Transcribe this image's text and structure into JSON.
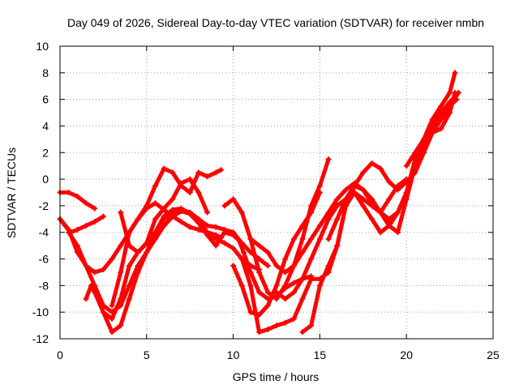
{
  "chart_data": {
    "type": "line",
    "title": "Day 049 of 2026, Sidereal Day-to-day VTEC variation (SDTVAR) for receiver nmbn",
    "xlabel": "GPS time / hours",
    "ylabel": "SDTVAR / TECUs",
    "xlim": [
      0,
      25
    ],
    "ylim": [
      -12,
      10
    ],
    "xticks": [
      0,
      5,
      10,
      15,
      20,
      25
    ],
    "yticks": [
      -12,
      -10,
      -8,
      -6,
      -4,
      -2,
      0,
      2,
      4,
      6,
      8,
      10
    ],
    "grid": true,
    "marker": "plus",
    "color": "#ff0000",
    "series": [
      {
        "x": [
          0.0,
          0.5,
          1.0,
          1.5,
          2.0
        ],
        "y": [
          -1.0,
          -1.0,
          -1.3,
          -1.8,
          -2.2
        ]
      },
      {
        "x": [
          0.0,
          0.5,
          1.0,
          1.5,
          2.0,
          2.5,
          3.0,
          3.5,
          4.0,
          4.5,
          5.0,
          5.5,
          6.0,
          6.5,
          7.0,
          7.5,
          8.0,
          8.5,
          9.0,
          9.3
        ],
        "y": [
          -3.0,
          -3.8,
          -5.5,
          -6.5,
          -7.0,
          -6.8,
          -6.0,
          -5.0,
          -4.0,
          -3.0,
          -2.2,
          -1.8,
          -2.3,
          -2.8,
          -3.2,
          -3.6,
          -3.8,
          -4.0,
          -4.2,
          -4.4
        ]
      },
      {
        "x": [
          0.5,
          1.0,
          1.5,
          2.0,
          2.5,
          3.0,
          3.5,
          4.0,
          4.5,
          5.0,
          5.5,
          6.0,
          6.5,
          7.0,
          7.5,
          8.0,
          8.5,
          9.0,
          9.5,
          10.0,
          10.5,
          11.0,
          11.5
        ],
        "y": [
          -4.0,
          -5.0,
          -6.5,
          -8.0,
          -9.5,
          -10.0,
          -9.5,
          -8.0,
          -6.5,
          -5.5,
          -4.5,
          -3.5,
          -2.8,
          -2.4,
          -2.6,
          -3.2,
          -4.0,
          -4.5,
          -4.8,
          -5.2,
          -6.0,
          -6.5,
          -6.8
        ]
      },
      {
        "x": [
          1.5,
          1.8,
          2.0,
          2.5,
          3.0,
          3.5,
          4.0,
          4.5,
          5.0,
          5.5,
          6.0,
          6.5,
          7.0,
          7.5,
          8.0,
          8.5,
          9.0,
          9.5,
          10.0,
          10.3,
          10.6,
          11.0,
          11.5,
          12.0,
          12.5,
          13.0,
          13.5,
          14.0,
          14.5
        ],
        "y": [
          -9.0,
          -8.0,
          -8.5,
          -10.0,
          -10.5,
          -9.0,
          -6.5,
          -5.5,
          -4.8,
          -4.0,
          -3.0,
          -2.5,
          -2.3,
          -2.5,
          -3.0,
          -3.5,
          -3.6,
          -3.8,
          -4.0,
          -4.5,
          -5.5,
          -7.0,
          -8.5,
          -9.0,
          -8.8,
          -8.2,
          -7.8,
          -7.5,
          -7.3
        ]
      },
      {
        "x": [
          0.0,
          0.3,
          0.6,
          1.0,
          1.5,
          2.0,
          2.5
        ],
        "y": [
          -3.0,
          -3.5,
          -4.0,
          -3.8,
          -3.5,
          -3.2,
          -2.8
        ]
      },
      {
        "x": [
          2.5,
          3.0,
          3.5,
          4.0,
          4.5,
          5.0,
          5.5,
          6.0,
          6.5,
          7.0,
          7.5,
          8.0,
          8.5,
          9.0,
          9.5,
          10.0,
          10.5,
          11.0,
          11.5,
          12.0
        ],
        "y": [
          -10.0,
          -11.5,
          -11.0,
          -9.0,
          -7.0,
          -5.5,
          -4.0,
          -2.8,
          -2.3,
          -2.2,
          -2.6,
          -3.3,
          -4.2,
          -5.0,
          -4.0,
          -4.2,
          -4.8,
          -5.5,
          -6.0,
          -6.5
        ]
      },
      {
        "x": [
          3.0,
          3.5,
          4.0,
          4.5,
          5.0,
          5.5,
          6.0,
          6.5,
          7.0,
          7.5,
          8.0,
          8.5,
          9.0,
          9.3
        ],
        "y": [
          -9.5,
          -7.0,
          -4.0,
          -3.0,
          -2.0,
          -0.5,
          0.8,
          0.5,
          -0.5,
          -1.0,
          0.5,
          0.2,
          0.5,
          0.7
        ]
      },
      {
        "x": [
          3.5,
          4.0,
          4.5,
          5.0,
          5.5,
          6.0,
          6.5,
          7.0,
          7.5,
          8.0,
          8.5
        ],
        "y": [
          -2.5,
          -5.0,
          -5.5,
          -4.8,
          -3.0,
          -2.2,
          -1.5,
          -0.3,
          0.0,
          -1.0,
          -2.5
        ]
      },
      {
        "x": [
          9.5,
          10.0,
          10.5,
          11.0,
          11.5,
          12.0,
          12.5,
          13.0,
          13.5,
          14.0,
          14.5,
          15.0,
          15.5
        ],
        "y": [
          -2.0,
          -1.5,
          -2.5,
          -4.5,
          -7.0,
          -8.5,
          -9.0,
          -8.0,
          -6.5,
          -4.5,
          -2.0,
          -0.5,
          1.5
        ]
      },
      {
        "x": [
          10.0,
          10.5,
          11.0,
          11.5,
          12.0,
          12.5,
          13.0,
          13.5,
          14.0,
          14.5,
          15.0
        ],
        "y": [
          -6.5,
          -8.0,
          -10.0,
          -10.2,
          -9.5,
          -8.0,
          -6.0,
          -4.5,
          -3.5,
          -2.5,
          -1.0
        ]
      },
      {
        "x": [
          10.5,
          11.0,
          11.5,
          12.0,
          12.5,
          13.0,
          13.5,
          14.0,
          14.5,
          15.0,
          15.5,
          16.0,
          16.5,
          17.0,
          17.5,
          18.0,
          18.5,
          19.0,
          19.5,
          20.0,
          20.5,
          21.0,
          21.5,
          22.0,
          22.5,
          22.9
        ],
        "y": [
          -6.0,
          -8.0,
          -11.5,
          -11.3,
          -11.0,
          -10.8,
          -10.5,
          -9.0,
          -7.5,
          -7.5,
          -7.0,
          -5.0,
          -2.0,
          -1.0,
          -1.5,
          -2.0,
          -2.5,
          -3.5,
          -4.0,
          -1.5,
          1.0,
          2.5,
          3.5,
          4.5,
          5.5,
          6.0
        ]
      },
      {
        "x": [
          11.0,
          11.5,
          12.0,
          12.5,
          13.0,
          13.5,
          14.0,
          14.5,
          15.0,
          15.5,
          16.0,
          16.5,
          17.0,
          17.5,
          18.0,
          18.5,
          19.0,
          19.5,
          20.0,
          20.5,
          21.0,
          21.5,
          22.0,
          22.5,
          22.8
        ],
        "y": [
          -4.5,
          -5.0,
          -5.5,
          -6.5,
          -7.0,
          -6.5,
          -5.5,
          -4.5,
          -3.5,
          -2.5,
          -1.5,
          -0.8,
          -0.3,
          -0.8,
          -1.8,
          -2.5,
          -3.0,
          -2.5,
          -1.0,
          1.0,
          3.0,
          4.5,
          5.5,
          6.5,
          8.0
        ]
      },
      {
        "x": [
          12.5,
          13.0,
          13.5,
          14.0,
          14.5,
          15.0,
          15.5,
          16.0,
          16.5,
          17.0,
          17.5,
          18.0,
          18.5,
          19.0,
          19.5,
          20.0,
          20.5,
          21.0,
          21.5,
          22.0,
          22.5,
          23.0
        ],
        "y": [
          -8.5,
          -9.0,
          -8.5,
          -7.5,
          -6.0,
          -4.5,
          -3.0,
          -2.0,
          -1.5,
          -1.0,
          -2.0,
          -3.0,
          -4.0,
          -3.5,
          -2.5,
          -1.0,
          1.5,
          3.0,
          4.0,
          5.0,
          5.8,
          6.5
        ]
      },
      {
        "x": [
          14.0,
          14.5,
          15.0,
          15.5,
          16.0,
          16.5,
          17.0,
          17.5,
          18.0,
          18.5,
          19.0,
          19.5,
          20.0,
          20.5,
          21.0,
          21.5,
          22.0,
          22.5,
          23.0
        ],
        "y": [
          -11.5,
          -11.0,
          -8.0,
          -6.5,
          -5.0,
          -2.0,
          -0.5,
          0.5,
          1.2,
          0.8,
          -0.2,
          -0.8,
          -0.2,
          0.5,
          2.0,
          3.5,
          4.5,
          5.5,
          6.5
        ]
      },
      {
        "x": [
          15.5,
          16.0,
          16.5,
          17.0,
          17.5,
          18.0,
          18.5,
          19.0,
          19.5,
          20.0
        ],
        "y": [
          -4.5,
          -3.0,
          -1.5,
          -0.5,
          -0.8,
          -1.5,
          -2.5,
          -1.5,
          -0.5,
          0.0
        ]
      },
      {
        "x": [
          20.0,
          20.5,
          21.0,
          21.5,
          22.0,
          22.5,
          22.8
        ],
        "y": [
          1.0,
          2.0,
          3.0,
          3.5,
          3.8,
          5.0,
          6.5
        ]
      }
    ]
  }
}
